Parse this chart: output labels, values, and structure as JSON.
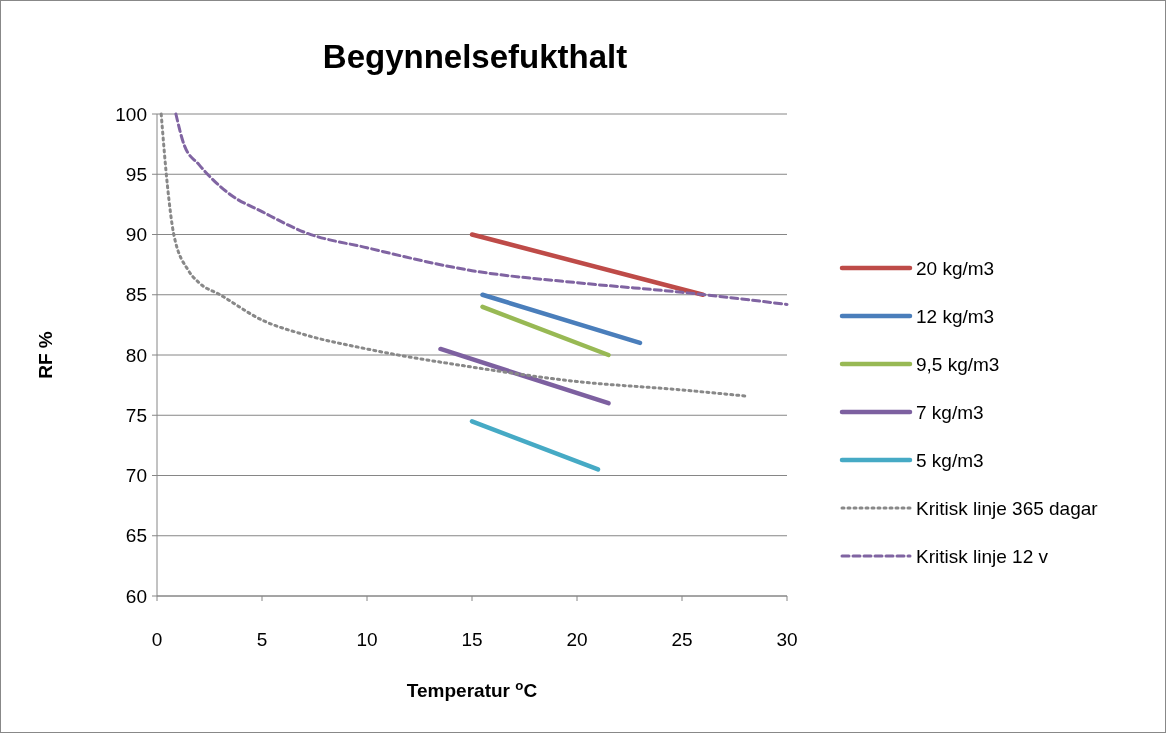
{
  "chart_data": {
    "type": "line",
    "title": "Begynnelsefukthalt",
    "xlabel": "Temperatur $^{o}$C",
    "ylabel": "RF %",
    "xlim": [
      0,
      30
    ],
    "xticks": [
      0,
      5,
      10,
      15,
      20,
      25,
      30
    ],
    "ylim": [
      60,
      100
    ],
    "yticks": [
      60,
      65,
      70,
      75,
      80,
      85,
      90,
      95,
      100
    ],
    "grid": "y",
    "legend": "right",
    "marker": "none",
    "series": [
      {
        "name": "20 kg/m3",
        "color": "#be4b48",
        "x": [
          15,
          26
        ],
        "values": [
          90,
          85
        ],
        "line_style": "solid"
      },
      {
        "name": "12 kg/m3",
        "color": "#4a7ebb",
        "x": [
          15.5,
          23
        ],
        "values": [
          85,
          81
        ],
        "line_style": "solid"
      },
      {
        "name": "9,5 kg/m3",
        "color": "#98b954",
        "x": [
          15.5,
          21.5
        ],
        "values": [
          84,
          80
        ],
        "line_style": "solid"
      },
      {
        "name": "7 kg/m3",
        "color": "#7d60a0",
        "x": [
          13.5,
          21.5
        ],
        "values": [
          80.5,
          76
        ],
        "line_style": "solid"
      },
      {
        "name": "5 kg/m3",
        "color": "#46aac5",
        "x": [
          15,
          21
        ],
        "values": [
          74.5,
          70.5
        ],
        "line_style": "solid"
      },
      {
        "name": "Kritisk linje 365 dagar",
        "color": "#888888",
        "x": [
          0.2,
          0.5,
          0.8,
          1.5,
          2,
          3,
          5,
          7,
          10,
          15,
          20,
          25,
          28
        ],
        "values": [
          100,
          94,
          90,
          87,
          86,
          85,
          82.9,
          81.7,
          80.5,
          79,
          77.8,
          77.1,
          76.6
        ],
        "line_style": "dotted"
      },
      {
        "name": "Kritisk linje 12 v",
        "color": "#8064a2",
        "x": [
          0.9,
          1.3,
          2,
          3.5,
          5,
          7,
          10,
          15,
          20,
          25,
          30
        ],
        "values": [
          100,
          97.4,
          95.8,
          93.3,
          91.9,
          90.2,
          88.9,
          87,
          86,
          85.2,
          84.2
        ],
        "line_style": "dashed"
      }
    ]
  }
}
